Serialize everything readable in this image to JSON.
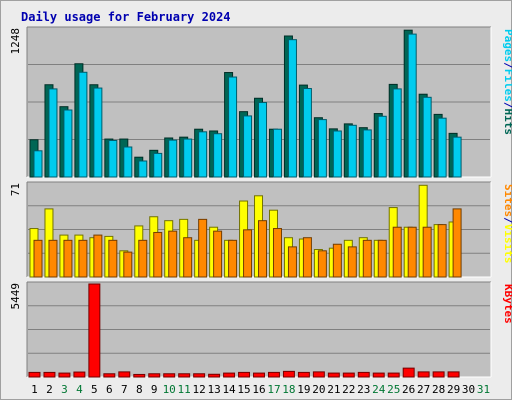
{
  "chart_data": {
    "type": "bar",
    "title": "Daily usage for February 2024",
    "colors": {
      "hits": "#006655",
      "files": "#00ccee",
      "sites": "#ff8800",
      "visits": "#ffff00",
      "kbytes": "#ff0000",
      "panel_bg": "#c0c0c0",
      "weekday_text": "#000000",
      "weekend_text": "#007733"
    },
    "days": [
      "1",
      "2",
      "3",
      "4",
      "5",
      "6",
      "7",
      "8",
      "9",
      "10",
      "11",
      "12",
      "13",
      "14",
      "15",
      "16",
      "17",
      "18",
      "19",
      "20",
      "21",
      "22",
      "23",
      "24",
      "25",
      "26",
      "27",
      "28",
      "29",
      "30",
      "31"
    ],
    "weekend_days": [
      3,
      4,
      10,
      11,
      17,
      18,
      24,
      25,
      31
    ],
    "hits_panel": {
      "max_label": "1248",
      "ylim": [
        0,
        1248
      ],
      "legend": [
        {
          "text": "Hits",
          "color": "#006655"
        },
        {
          "text": "/",
          "color": "#0000b0"
        },
        {
          "text": "Files",
          "color": "#00ccee"
        },
        {
          "text": "/",
          "color": "#0000b0"
        },
        {
          "text": "Pages",
          "color": "#00ccee"
        }
      ],
      "series": [
        {
          "name": "Hits",
          "values": [
            314,
            778,
            593,
            955,
            778,
            320,
            320,
            167,
            225,
            329,
            336,
            403,
            388,
            881,
            551,
            664,
            403,
            1189,
            775,
            500,
            406,
            448,
            416,
            535,
            781,
            1238,
            698,
            528,
            368,
            null,
            null
          ]
        },
        {
          "name": "Files",
          "values": [
            221,
            743,
            565,
            883,
            750,
            308,
            253,
            135,
            199,
            311,
            320,
            381,
            365,
            843,
            515,
            628,
            403,
            1158,
            746,
            484,
            388,
            436,
            397,
            512,
            743,
            1205,
            672,
            496,
            336,
            null,
            null
          ]
        }
      ]
    },
    "sites_panel": {
      "max_label": "71",
      "ylim": [
        0,
        71
      ],
      "legend": [
        {
          "text": "Visits",
          "color": "#ffff00"
        },
        {
          "text": "/",
          "color": "#0000b0"
        },
        {
          "text": "Sites",
          "color": "#ff8800"
        }
      ],
      "series": [
        {
          "name": "Visits",
          "values": [
            37,
            52,
            32,
            32,
            30,
            31,
            20,
            39,
            46,
            43,
            44,
            28,
            38,
            28,
            58,
            62,
            51,
            30,
            29,
            21,
            22,
            28,
            30,
            28,
            53,
            38,
            70,
            40,
            42,
            null,
            null
          ]
        },
        {
          "name": "Sites",
          "values": [
            28,
            28,
            28,
            28,
            32,
            28,
            19,
            28,
            34,
            35,
            30,
            44,
            35,
            28,
            36,
            43,
            37,
            23,
            30,
            20,
            25,
            23,
            28,
            28,
            38,
            38,
            38,
            40,
            52,
            null,
            null
          ]
        }
      ]
    },
    "kbytes_panel": {
      "max_label": "5449",
      "ylim": [
        0,
        5449
      ],
      "legend": [
        {
          "text": "KBytes",
          "color": "#ff0000"
        }
      ],
      "series": [
        {
          "name": "KBytes",
          "values": [
            270,
            270,
            230,
            290,
            5449,
            190,
            300,
            150,
            190,
            190,
            190,
            190,
            160,
            230,
            270,
            230,
            270,
            330,
            270,
            300,
            230,
            230,
            270,
            230,
            230,
            520,
            300,
            300,
            300,
            null,
            null
          ]
        }
      ]
    }
  }
}
